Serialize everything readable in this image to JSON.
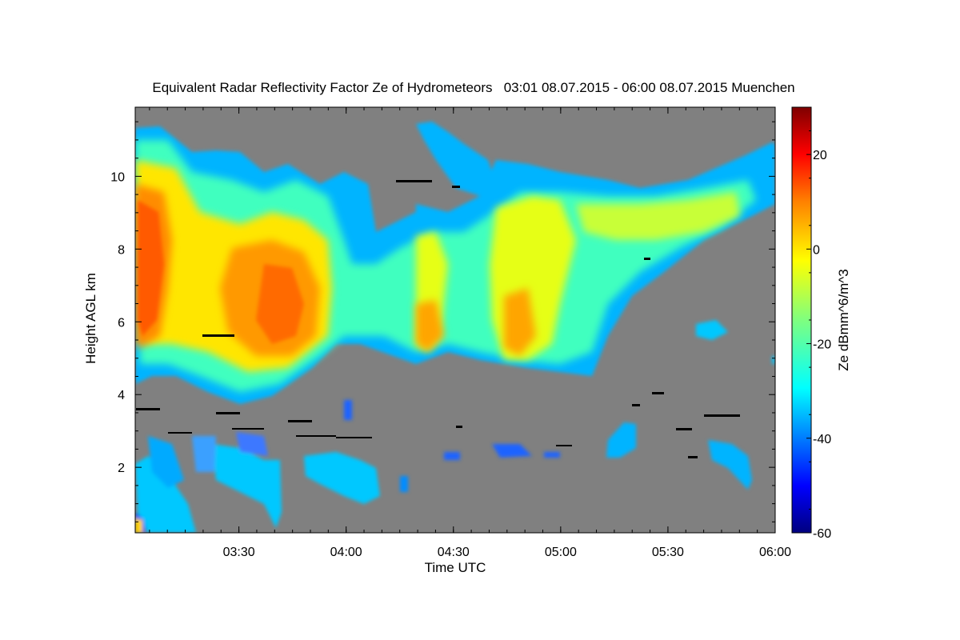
{
  "chart_data": {
    "type": "heatmap",
    "title": "Equivalent Radar Reflectivity Factor Ze of Hydrometeors   03:01 08.07.2015 - 06:00 08.07.2015 Muenchen",
    "xlabel": "Time UTC",
    "ylabel": "Height AGL km",
    "colorbar_label": "Ze dBmm^6/m^3",
    "xlim": [
      "03:01",
      "06:00"
    ],
    "ylim": [
      0.2,
      11.9
    ],
    "x_ticks": [
      "03:30",
      "04:00",
      "04:30",
      "05:00",
      "05:30",
      "06:00"
    ],
    "y_ticks": [
      "2",
      "4",
      "6",
      "8",
      "10"
    ],
    "colorbar_range": [
      -60,
      30
    ],
    "colorbar_ticks": [
      "20",
      "0",
      "-20",
      "-40",
      "-60"
    ],
    "colormap": [
      "#00007f",
      "#0000ff",
      "#007fff",
      "#00ffff",
      "#7fff7f",
      "#ffff00",
      "#ff7f00",
      "#ff0000",
      "#7f0000"
    ],
    "background_color": "#808080",
    "cells": [
      {
        "t": "03:01",
        "h": 7.5,
        "ze": 8
      },
      {
        "t": "03:10",
        "h": 6.5,
        "ze": 6
      },
      {
        "t": "03:45",
        "h": 6.2,
        "ze": 5
      },
      {
        "t": "03:40",
        "h": 7.8,
        "ze": -3
      },
      {
        "t": "04:21",
        "h": 5.7,
        "ze": -2
      },
      {
        "t": "04:45",
        "h": 5.8,
        "ze": 0
      },
      {
        "t": "05:35",
        "h": 9.0,
        "ze": -12
      },
      {
        "t": "03:30",
        "h": 2.0,
        "ze": -28
      },
      {
        "t": "04:02",
        "h": 1.8,
        "ze": -27
      }
    ]
  }
}
